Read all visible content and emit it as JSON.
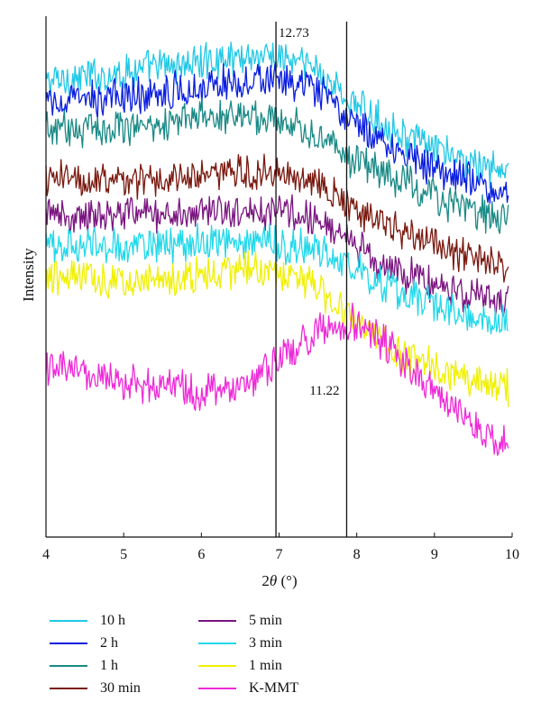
{
  "chart_data": {
    "type": "line",
    "xlabel_prefix": "2",
    "xlabel_theta": "θ",
    "xlabel_suffix": " (°)",
    "ylabel": "Intensity",
    "xlim": [
      4,
      10
    ],
    "x_ticks": [
      "4",
      "5",
      "6",
      "7",
      "8",
      "9",
      "10"
    ],
    "vlines": [
      {
        "x": 6.96,
        "label": "12.73"
      },
      {
        "x": 7.87,
        "label": "11.22"
      }
    ],
    "series": [
      {
        "name": "10 h",
        "color": "#21c8e6",
        "x": [
          4.0,
          5.0,
          6.0,
          6.6,
          7.0,
          7.5,
          7.9,
          8.5,
          9.0,
          9.5,
          9.95
        ],
        "y": [
          9.3,
          9.5,
          9.7,
          9.85,
          9.8,
          9.55,
          8.9,
          8.3,
          7.9,
          7.6,
          7.45
        ]
      },
      {
        "name": "2 h",
        "color": "#0a1ee0",
        "x": [
          4.0,
          5.0,
          6.0,
          6.6,
          7.0,
          7.5,
          7.9,
          8.5,
          9.0,
          9.5,
          9.95
        ],
        "y": [
          8.85,
          9.0,
          9.2,
          9.35,
          9.3,
          9.1,
          8.5,
          7.95,
          7.55,
          7.25,
          7.05
        ]
      },
      {
        "name": "1 h",
        "color": "#1a8a86",
        "x": [
          4.0,
          5.0,
          6.0,
          6.6,
          7.0,
          7.5,
          7.9,
          8.5,
          9.0,
          9.5,
          9.95
        ],
        "y": [
          8.3,
          8.4,
          8.55,
          8.65,
          8.55,
          8.2,
          7.75,
          7.3,
          6.95,
          6.65,
          6.5
        ]
      },
      {
        "name": "30 min",
        "color": "#7a1a10",
        "x": [
          4.0,
          5.0,
          6.0,
          6.6,
          7.0,
          7.5,
          7.9,
          8.5,
          9.0,
          9.5,
          9.95
        ],
        "y": [
          7.3,
          7.3,
          7.35,
          7.45,
          7.45,
          7.3,
          6.8,
          6.25,
          5.95,
          5.7,
          5.5
        ]
      },
      {
        "name": "5 min",
        "color": "#7a1580",
        "x": [
          4.0,
          5.0,
          6.0,
          6.6,
          7.0,
          7.5,
          7.9,
          8.5,
          9.0,
          9.5,
          9.95
        ],
        "y": [
          6.55,
          6.6,
          6.65,
          6.7,
          6.65,
          6.5,
          6.0,
          5.45,
          5.15,
          4.9,
          4.75
        ]
      },
      {
        "name": "3 min",
        "color": "#22d8ea",
        "x": [
          4.0,
          5.0,
          6.0,
          6.6,
          7.0,
          7.5,
          7.9,
          8.5,
          9.0,
          9.5,
          9.95
        ],
        "y": [
          5.95,
          5.95,
          6.0,
          6.05,
          6.0,
          5.85,
          5.5,
          5.05,
          4.75,
          4.55,
          4.35
        ]
      },
      {
        "name": "1 min",
        "color": "#f0f000",
        "x": [
          4.0,
          5.0,
          6.0,
          6.6,
          7.0,
          7.5,
          7.9,
          8.5,
          9.0,
          9.5,
          9.95
        ],
        "y": [
          5.3,
          5.25,
          5.35,
          5.45,
          5.4,
          5.1,
          4.45,
          3.75,
          3.45,
          3.2,
          3.05
        ]
      },
      {
        "name": "K-MMT",
        "color": "#ee2ad8",
        "x": [
          4.0,
          4.5,
          5.0,
          5.5,
          6.0,
          6.5,
          7.0,
          7.5,
          7.9,
          8.3,
          8.7,
          9.0,
          9.5,
          9.95
        ],
        "y": [
          3.45,
          3.3,
          3.15,
          3.05,
          3.0,
          3.1,
          3.6,
          4.2,
          4.4,
          4.05,
          3.45,
          2.95,
          2.3,
          1.85
        ]
      }
    ]
  }
}
